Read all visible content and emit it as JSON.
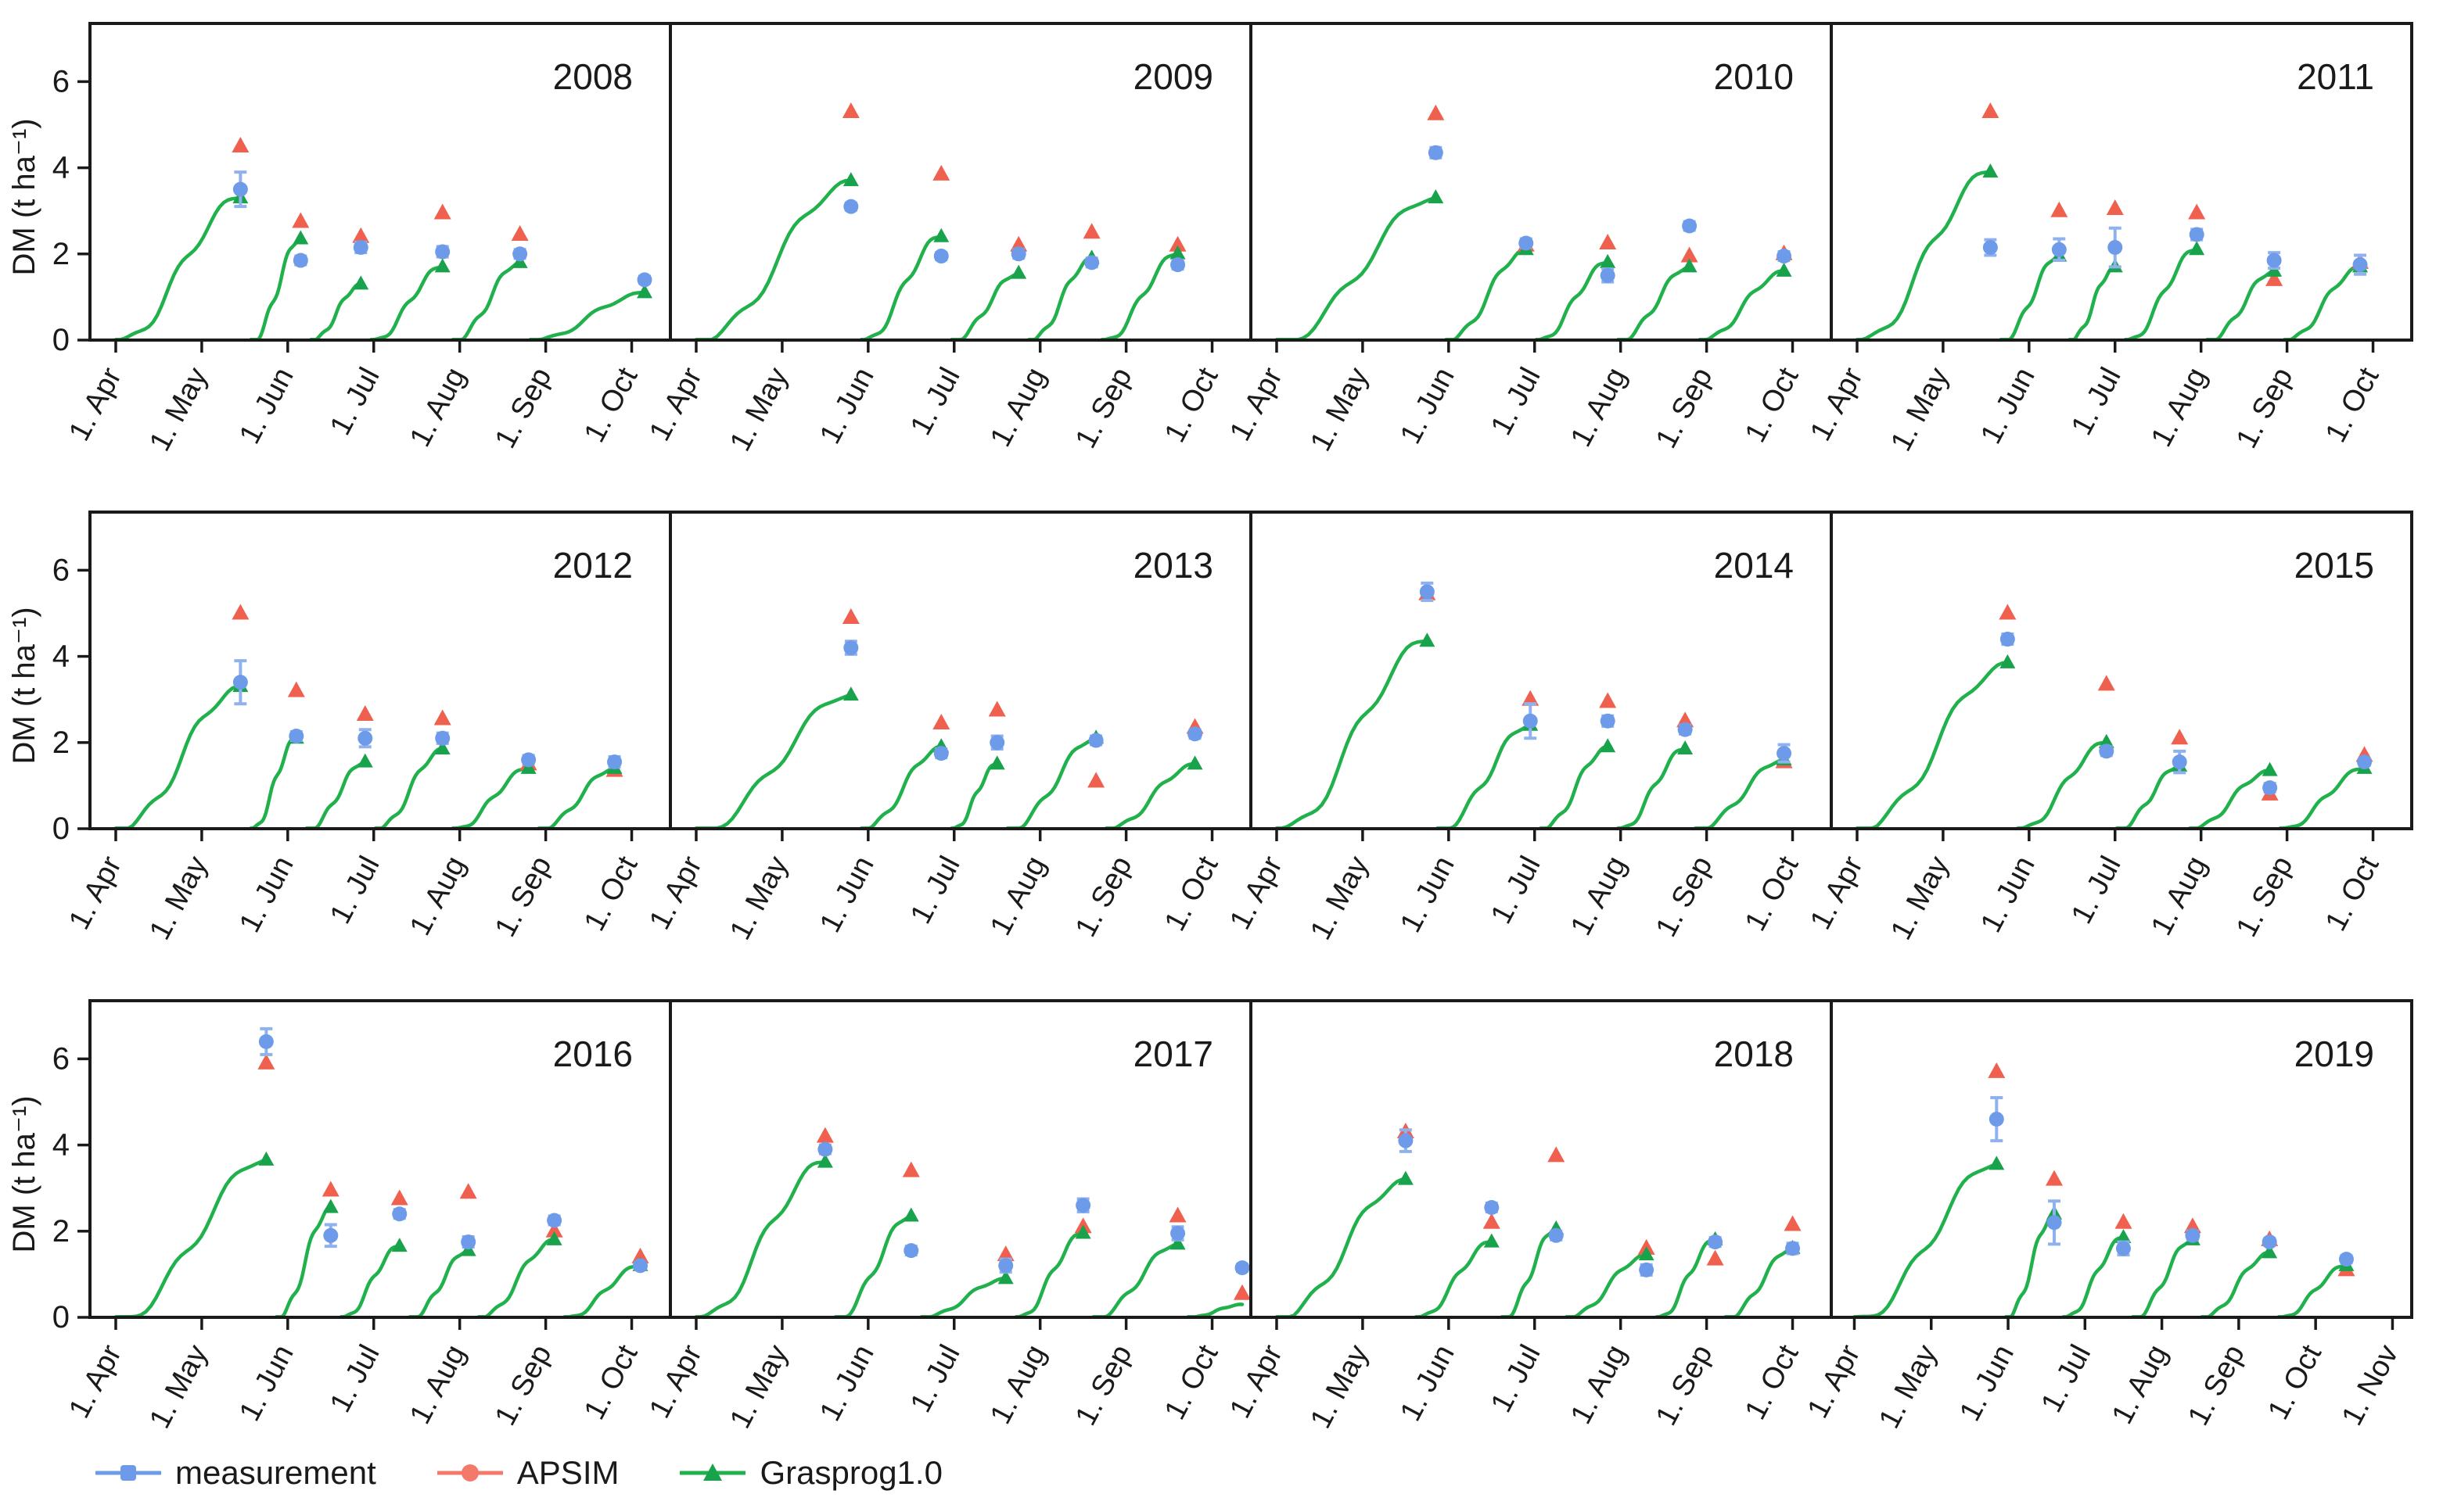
{
  "figure": {
    "ylabel": "DM (t ha⁻¹)",
    "yticks": [
      0,
      2,
      4,
      6
    ],
    "months": [
      "1. Apr",
      "1. May",
      "1. Jun",
      "1. Jul",
      "1. Aug",
      "1. Sep",
      "1. Oct",
      "1. Nov"
    ],
    "colors": {
      "measurement": "#6d9bea",
      "measurement_err": "#8fb2ef",
      "apsim": "#f0604f",
      "apsim_legend": "#f4796a",
      "grasprog": "#18a24b",
      "curve": "#21b14c",
      "axis": "#1a1a1a",
      "text": "#1a1a1a"
    }
  },
  "legend": [
    {
      "label": "measurement",
      "series": "measurement"
    },
    {
      "label": "APSIM",
      "series": "apsim"
    },
    {
      "label": "Grasprog1.0",
      "series": "grasprog"
    }
  ],
  "chart_data": {
    "type": "line",
    "subtype": "growth-curves-with-scatter",
    "title": "",
    "xlabel": "",
    "ylabel": "DM (t ha⁻¹)",
    "ylim": [
      0,
      7.35
    ],
    "x_unit": "month-of-year (4 = 1. Apr, 5 = 1. May, ...)",
    "grid": false,
    "legend_position": "bottom-left",
    "series_names": [
      "measurement",
      "APSIM",
      "Grasprog1.0"
    ],
    "panels": [
      {
        "year": "2008",
        "end_month": 10,
        "cuts": [
          {
            "x": 5.45,
            "measurement": 3.5,
            "err": 0.4,
            "apsim": 4.5,
            "grasprog": 3.3
          },
          {
            "x": 6.15,
            "measurement": 1.85,
            "err": 0.1,
            "apsim": 2.75,
            "grasprog": 2.35
          },
          {
            "x": 6.85,
            "measurement": 2.15,
            "err": 0.12,
            "apsim": 2.4,
            "grasprog": 1.3
          },
          {
            "x": 7.8,
            "measurement": 2.05,
            "err": 0.12,
            "apsim": 2.95,
            "grasprog": 1.7
          },
          {
            "x": 8.7,
            "measurement": 2.0,
            "err": 0.1,
            "apsim": 2.45,
            "grasprog": 1.8
          },
          {
            "x": 10.15,
            "measurement": 1.4,
            "err": 0.08,
            "apsim": null,
            "grasprog": 1.1
          }
        ]
      },
      {
        "year": "2009",
        "end_month": 10,
        "cuts": [
          {
            "x": 5.8,
            "measurement": 3.1,
            "err": 0.08,
            "apsim": 5.3,
            "grasprog": 3.7
          },
          {
            "x": 6.85,
            "measurement": 1.95,
            "err": 0.08,
            "apsim": 3.85,
            "grasprog": 2.4
          },
          {
            "x": 7.75,
            "measurement": 2.0,
            "err": 0.1,
            "apsim": 2.2,
            "grasprog": 1.55
          },
          {
            "x": 8.6,
            "measurement": 1.8,
            "err": 0.1,
            "apsim": 2.5,
            "grasprog": 1.9
          },
          {
            "x": 9.6,
            "measurement": 1.75,
            "err": 0.1,
            "apsim": 2.2,
            "grasprog": 2.0
          }
        ]
      },
      {
        "year": "2010",
        "end_month": 10,
        "cuts": [
          {
            "x": 5.85,
            "measurement": 4.35,
            "err": 0.12,
            "apsim": 5.25,
            "grasprog": 3.3
          },
          {
            "x": 6.9,
            "measurement": 2.25,
            "err": 0.1,
            "apsim": 2.2,
            "grasprog": 2.1
          },
          {
            "x": 7.85,
            "measurement": 1.5,
            "err": 0.15,
            "apsim": 2.25,
            "grasprog": 1.8
          },
          {
            "x": 8.8,
            "measurement": 2.65,
            "err": 0.1,
            "apsim": 1.95,
            "grasprog": 1.7
          },
          {
            "x": 9.9,
            "measurement": 1.95,
            "err": 0.1,
            "apsim": 2.0,
            "grasprog": 1.6
          }
        ]
      },
      {
        "year": "2011",
        "end_month": 10,
        "cuts": [
          {
            "x": 5.55,
            "measurement": 2.15,
            "err": 0.18,
            "apsim": 5.3,
            "grasprog": 3.9
          },
          {
            "x": 6.35,
            "measurement": 2.1,
            "err": 0.25,
            "apsim": 3.0,
            "grasprog": 1.95
          },
          {
            "x": 7.0,
            "measurement": 2.15,
            "err": 0.45,
            "apsim": 3.05,
            "grasprog": 1.7
          },
          {
            "x": 7.95,
            "measurement": 2.45,
            "err": 0.12,
            "apsim": 2.95,
            "grasprog": 2.1
          },
          {
            "x": 8.85,
            "measurement": 1.85,
            "err": 0.18,
            "apsim": 1.4,
            "grasprog": 1.6
          },
          {
            "x": 9.85,
            "measurement": 1.75,
            "err": 0.22,
            "apsim": 1.8,
            "grasprog": 1.7
          }
        ]
      },
      {
        "year": "2012",
        "end_month": 10,
        "cuts": [
          {
            "x": 5.45,
            "measurement": 3.4,
            "err": 0.5,
            "apsim": 5.0,
            "grasprog": 3.3
          },
          {
            "x": 6.1,
            "measurement": 2.15,
            "err": 0.1,
            "apsim": 3.2,
            "grasprog": 2.1
          },
          {
            "x": 6.9,
            "measurement": 2.1,
            "err": 0.2,
            "apsim": 2.65,
            "grasprog": 1.55
          },
          {
            "x": 7.8,
            "measurement": 2.1,
            "err": 0.12,
            "apsim": 2.55,
            "grasprog": 1.85
          },
          {
            "x": 8.8,
            "measurement": 1.6,
            "err": 0.1,
            "apsim": 1.5,
            "grasprog": 1.4
          },
          {
            "x": 9.8,
            "measurement": 1.55,
            "err": 0.12,
            "apsim": 1.35,
            "grasprog": 1.4
          }
        ]
      },
      {
        "year": "2013",
        "end_month": 10,
        "cuts": [
          {
            "x": 5.8,
            "measurement": 4.2,
            "err": 0.15,
            "apsim": 4.9,
            "grasprog": 3.1
          },
          {
            "x": 6.85,
            "measurement": 1.75,
            "err": 0.1,
            "apsim": 2.45,
            "grasprog": 1.9
          },
          {
            "x": 7.5,
            "measurement": 2.0,
            "err": 0.15,
            "apsim": 2.75,
            "grasprog": 1.5
          },
          {
            "x": 8.65,
            "measurement": 2.05,
            "err": 0.1,
            "apsim": 1.1,
            "grasprog": 2.1
          },
          {
            "x": 9.8,
            "measurement": 2.2,
            "err": 0.1,
            "apsim": 2.35,
            "grasprog": 1.5
          }
        ]
      },
      {
        "year": "2014",
        "end_month": 10,
        "cuts": [
          {
            "x": 5.75,
            "measurement": 5.5,
            "err": 0.2,
            "apsim": 5.45,
            "grasprog": 4.35
          },
          {
            "x": 6.95,
            "measurement": 2.5,
            "err": 0.4,
            "apsim": 3.0,
            "grasprog": 2.4
          },
          {
            "x": 7.85,
            "measurement": 2.5,
            "err": 0.12,
            "apsim": 2.95,
            "grasprog": 1.9
          },
          {
            "x": 8.75,
            "measurement": 2.3,
            "err": 0.1,
            "apsim": 2.5,
            "grasprog": 1.85
          },
          {
            "x": 9.9,
            "measurement": 1.75,
            "err": 0.2,
            "apsim": 1.55,
            "grasprog": 1.6
          }
        ]
      },
      {
        "year": "2015",
        "end_month": 10,
        "cuts": [
          {
            "x": 5.75,
            "measurement": 4.4,
            "err": 0.12,
            "apsim": 5.0,
            "grasprog": 3.85
          },
          {
            "x": 6.9,
            "measurement": 1.8,
            "err": 0.1,
            "apsim": 3.35,
            "grasprog": 2.0
          },
          {
            "x": 7.75,
            "measurement": 1.55,
            "err": 0.25,
            "apsim": 2.1,
            "grasprog": 1.45
          },
          {
            "x": 8.8,
            "measurement": 0.95,
            "err": 0.1,
            "apsim": 0.8,
            "grasprog": 1.35
          },
          {
            "x": 9.9,
            "measurement": 1.55,
            "err": 0.08,
            "apsim": 1.7,
            "grasprog": 1.4
          }
        ]
      },
      {
        "year": "2016",
        "end_month": 10,
        "cuts": [
          {
            "x": 5.75,
            "measurement": 6.4,
            "err": 0.3,
            "apsim": 5.9,
            "grasprog": 3.65
          },
          {
            "x": 6.5,
            "measurement": 1.9,
            "err": 0.25,
            "apsim": 2.95,
            "grasprog": 2.55
          },
          {
            "x": 7.3,
            "measurement": 2.4,
            "err": 0.1,
            "apsim": 2.75,
            "grasprog": 1.65
          },
          {
            "x": 8.1,
            "measurement": 1.75,
            "err": 0.12,
            "apsim": 2.9,
            "grasprog": 1.55
          },
          {
            "x": 9.1,
            "measurement": 2.25,
            "err": 0.1,
            "apsim": 2.0,
            "grasprog": 1.8
          },
          {
            "x": 10.1,
            "measurement": 1.2,
            "err": 0.08,
            "apsim": 1.4,
            "grasprog": 1.2
          }
        ]
      },
      {
        "year": "2017",
        "end_month": 10,
        "cuts": [
          {
            "x": 5.5,
            "measurement": 3.9,
            "err": 0.1,
            "apsim": 4.2,
            "grasprog": 3.6
          },
          {
            "x": 6.5,
            "measurement": 1.55,
            "err": 0.1,
            "apsim": 3.4,
            "grasprog": 2.35
          },
          {
            "x": 7.6,
            "measurement": 1.2,
            "err": 0.15,
            "apsim": 1.45,
            "grasprog": 0.9
          },
          {
            "x": 8.5,
            "measurement": 2.6,
            "err": 0.15,
            "apsim": 2.1,
            "grasprog": 1.95
          },
          {
            "x": 9.6,
            "measurement": 1.95,
            "err": 0.15,
            "apsim": 2.35,
            "grasprog": 1.7
          },
          {
            "x": 10.35,
            "measurement": 1.15,
            "err": 0.08,
            "apsim": 0.55,
            "grasprog": null,
            "curve_end": 0.3
          }
        ]
      },
      {
        "year": "2018",
        "end_month": 10,
        "cuts": [
          {
            "x": 5.5,
            "measurement": 4.1,
            "err": 0.25,
            "apsim": 4.3,
            "grasprog": 3.2
          },
          {
            "x": 6.5,
            "measurement": 2.55,
            "err": 0.1,
            "apsim": 2.2,
            "grasprog": 1.75
          },
          {
            "x": 7.25,
            "measurement": 1.9,
            "err": 0.1,
            "apsim": 3.75,
            "grasprog": 2.05
          },
          {
            "x": 8.3,
            "measurement": 1.1,
            "err": 0.12,
            "apsim": 1.6,
            "grasprog": 1.45
          },
          {
            "x": 9.1,
            "measurement": 1.75,
            "err": 0.1,
            "apsim": 1.35,
            "grasprog": 1.8
          },
          {
            "x": 10.0,
            "measurement": 1.6,
            "err": 0.12,
            "apsim": 2.15,
            "grasprog": 1.6
          }
        ]
      },
      {
        "year": "2019",
        "end_month": 11,
        "cuts": [
          {
            "x": 5.85,
            "measurement": 4.6,
            "err": 0.5,
            "apsim": 5.7,
            "grasprog": 3.55
          },
          {
            "x": 6.6,
            "measurement": 2.2,
            "err": 0.5,
            "apsim": 3.2,
            "grasprog": 2.4
          },
          {
            "x": 7.5,
            "measurement": 1.6,
            "err": 0.15,
            "apsim": 2.2,
            "grasprog": 1.85
          },
          {
            "x": 8.4,
            "measurement": 1.9,
            "err": 0.1,
            "apsim": 2.1,
            "grasprog": 1.8
          },
          {
            "x": 9.4,
            "measurement": 1.75,
            "err": 0.08,
            "apsim": 1.8,
            "grasprog": 1.5
          },
          {
            "x": 10.4,
            "measurement": 1.35,
            "err": 0.08,
            "apsim": 1.1,
            "grasprog": 1.2
          }
        ]
      }
    ]
  }
}
